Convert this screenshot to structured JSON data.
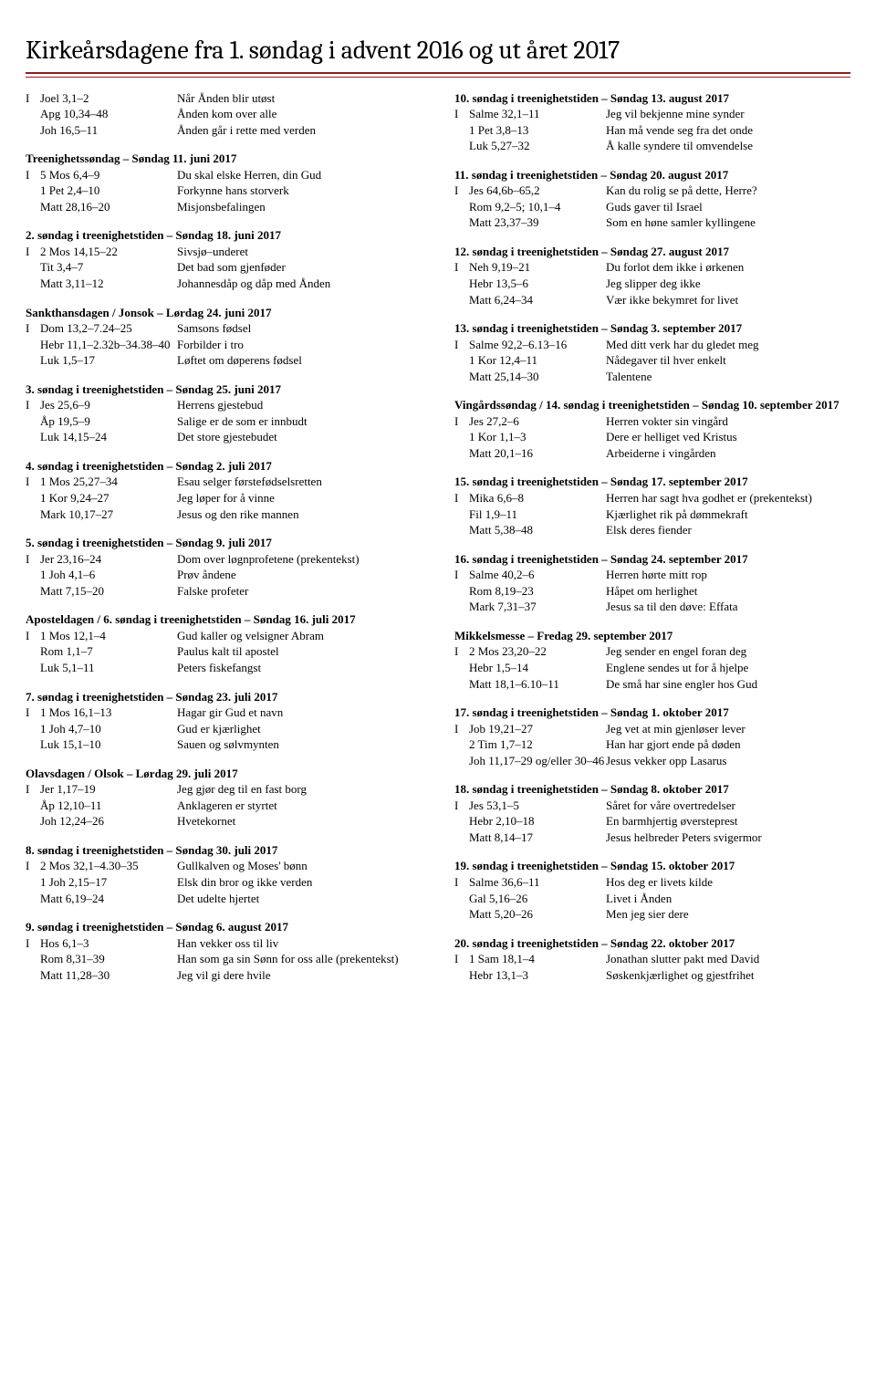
{
  "title": "Kirkeårsdagene fra 1. søndag i advent 2016 og ut året 2017",
  "col1": [
    {
      "rows": [
        [
          "I",
          "Joel 3,1–2",
          "Når Ånden blir utøst"
        ],
        [
          "",
          "Apg 10,34–48",
          "Ånden kom over alle"
        ],
        [
          "",
          "Joh 16,5–11",
          "Ånden går i rette med verden"
        ]
      ]
    },
    {
      "head": "Treenighetssøndag – Søndag 11. juni 2017",
      "rows": [
        [
          "I",
          "5 Mos 6,4–9",
          "Du skal elske Herren, din Gud"
        ],
        [
          "",
          "1 Pet 2,4–10",
          "Forkynne hans storverk"
        ],
        [
          "",
          "Matt 28,16–20",
          "Misjonsbefalingen"
        ]
      ]
    },
    {
      "head": "2. søndag i treenighetstiden – Søndag 18. juni 2017",
      "rows": [
        [
          "I",
          "2 Mos 14,15–22",
          "Sivsjø–underet"
        ],
        [
          "",
          "Tit 3,4–7",
          "Det bad som gjenføder"
        ],
        [
          "",
          "Matt 3,11–12",
          "Johannesdåp og dåp med Ånden"
        ]
      ]
    },
    {
      "head": "Sankthansdagen / Jonsok – Lørdag 24. juni 2017",
      "rows": [
        [
          "I",
          "Dom 13,2–7.24–25",
          "Samsons fødsel"
        ],
        [
          "",
          "Hebr 11,1–2.32b–34.38–40",
          "Forbilder i tro"
        ],
        [
          "",
          "Luk 1,5–17",
          "Løftet om døperens fødsel"
        ]
      ]
    },
    {
      "head": "3. søndag i treenighetstiden – Søndag 25. juni 2017",
      "rows": [
        [
          "I",
          "Jes 25,6–9",
          "Herrens gjestebud"
        ],
        [
          "",
          "Åp 19,5–9",
          "Salige er de som er innbudt"
        ],
        [
          "",
          "Luk 14,15–24",
          "Det store gjestebudet"
        ]
      ]
    },
    {
      "head": "4. søndag i treenighetstiden – Søndag 2. juli 2017",
      "rows": [
        [
          "I",
          "1 Mos 25,27–34",
          "Esau selger førstefødselsretten"
        ],
        [
          "",
          "1 Kor 9,24–27",
          "Jeg løper for å vinne"
        ],
        [
          "",
          "Mark 10,17–27",
          "Jesus og den rike mannen"
        ]
      ]
    },
    {
      "head": "5. søndag i treenighetstiden – Søndag 9. juli 2017",
      "rows": [
        [
          "I",
          "Jer 23,16–24",
          "Dom over løgnprofetene (prekentekst)"
        ],
        [
          "",
          "1 Joh 4,1–6",
          "Prøv åndene"
        ],
        [
          "",
          "Matt 7,15–20",
          "Falske profeter"
        ]
      ]
    },
    {
      "head": "Aposteldagen / 6. søndag i treenighetstiden – Søndag 16. juli 2017",
      "rows": [
        [
          "I",
          "1 Mos 12,1–4",
          "Gud kaller og velsigner Abram"
        ],
        [
          "",
          "Rom 1,1–7",
          "Paulus kalt til apostel"
        ],
        [
          "",
          "Luk 5,1–11",
          "Peters fiskefangst"
        ]
      ]
    },
    {
      "head": "7. søndag i treenighetstiden – Søndag 23. juli 2017",
      "rows": [
        [
          "I",
          "1 Mos 16,1–13",
          "Hagar gir Gud et navn"
        ],
        [
          "",
          "1 Joh 4,7–10",
          "Gud er kjærlighet"
        ],
        [
          "",
          "Luk 15,1–10",
          "Sauen og sølvmynten"
        ]
      ]
    },
    {
      "head": "Olavsdagen / Olsok – Lørdag 29. juli 2017",
      "rows": [
        [
          "I",
          "Jer 1,17–19",
          "Jeg gjør deg til en fast borg"
        ],
        [
          "",
          "Åp 12,10–11",
          "Anklageren er styrtet"
        ],
        [
          "",
          "Joh 12,24–26",
          "Hvetekornet"
        ]
      ]
    },
    {
      "head": "8. søndag i treenighetstiden – Søndag 30. juli 2017",
      "rows": [
        [
          "I",
          "2 Mos 32,1–4.30–35",
          "Gullkalven og Moses' bønn"
        ],
        [
          "",
          "1 Joh 2,15–17",
          "Elsk din bror og ikke verden"
        ],
        [
          "",
          "Matt 6,19–24",
          "Det udelte hjertet"
        ]
      ]
    },
    {
      "head": "9. søndag i treenighetstiden – Søndag 6. august 2017",
      "rows": [
        [
          "I",
          "Hos 6,1–3",
          "Han vekker oss til liv"
        ],
        [
          "",
          "Rom 8,31–39",
          "Han som ga sin Sønn for oss alle (prekentekst)"
        ],
        [
          "",
          "Matt 11,28–30",
          "Jeg vil gi dere hvile"
        ]
      ]
    }
  ],
  "col2": [
    {
      "head": "10. søndag i treenighetstiden – Søndag 13. august 2017",
      "rows": [
        [
          "I",
          "Salme 32,1–11",
          "Jeg vil bekjenne mine synder"
        ],
        [
          "",
          "1 Pet 3,8–13",
          "Han må vende seg fra det onde"
        ],
        [
          "",
          "Luk 5,27–32",
          "Å kalle syndere til omvendelse"
        ]
      ]
    },
    {
      "head": "11. søndag i treenighetstiden – Søndag 20. august 2017",
      "rows": [
        [
          "I",
          "Jes 64,6b–65,2",
          "Kan du rolig se på dette, Herre?"
        ],
        [
          "",
          "Rom 9,2–5; 10,1–4",
          "Guds gaver til Israel"
        ],
        [
          "",
          "Matt 23,37–39",
          "Som en høne samler kyllingene"
        ]
      ]
    },
    {
      "head": "12. søndag i treenighetstiden – Søndag 27. august 2017",
      "rows": [
        [
          "I",
          "Neh 9,19–21",
          "Du forlot dem ikke i ørkenen"
        ],
        [
          "",
          "Hebr 13,5–6",
          "Jeg slipper deg ikke"
        ],
        [
          "",
          "Matt 6,24–34",
          "Vær ikke bekymret for livet"
        ]
      ]
    },
    {
      "head": "13. søndag i treenighetstiden – Søndag 3. september 2017",
      "rows": [
        [
          "I",
          "Salme 92,2–6.13–16",
          "Med ditt verk har du gledet meg"
        ],
        [
          "",
          "1 Kor 12,4–11",
          "Nådegaver til hver enkelt"
        ],
        [
          "",
          "Matt 25,14–30",
          "Talentene"
        ]
      ]
    },
    {
      "head": "Vingårdssøndag / 14. søndag i treenighetstiden – Søndag 10. september 2017",
      "rows": [
        [
          "I",
          "Jes 27,2–6",
          "Herren vokter sin vingård"
        ],
        [
          "",
          "1 Kor 1,1–3",
          "Dere er helliget ved Kristus"
        ],
        [
          "",
          "Matt 20,1–16",
          "Arbeiderne i vingården"
        ]
      ]
    },
    {
      "head": "15. søndag i treenighetstiden – Søndag 17. september 2017",
      "rows": [
        [
          "I",
          "Mika 6,6–8",
          "Herren har sagt hva godhet er (prekentekst)"
        ],
        [
          "",
          "Fil 1,9–11",
          "Kjærlighet rik på dømmekraft"
        ],
        [
          "",
          "Matt 5,38–48",
          "Elsk deres fiender"
        ]
      ]
    },
    {
      "head": "16. søndag i treenighetstiden – Søndag 24. september 2017",
      "rows": [
        [
          "I",
          "Salme 40,2–6",
          "Herren hørte mitt rop"
        ],
        [
          "",
          "Rom 8,19–23",
          "Håpet om herlighet"
        ],
        [
          "",
          "Mark 7,31–37",
          "Jesus sa til den døve: Effata"
        ]
      ]
    },
    {
      "head": "Mikkelsmesse – Fredag 29. september 2017",
      "rows": [
        [
          "I",
          "2 Mos 23,20–22",
          "Jeg sender en engel foran deg"
        ],
        [
          "",
          "Hebr 1,5–14",
          "Englene sendes ut for å hjelpe"
        ],
        [
          "",
          "Matt 18,1–6.10–11",
          "De små har sine engler hos Gud"
        ]
      ]
    },
    {
      "head": "17. søndag i treenighetstiden – Søndag 1. oktober 2017",
      "rows": [
        [
          "I",
          "Job 19,21–27",
          "Jeg vet at min gjenløser lever"
        ],
        [
          "",
          "2 Tim 1,7–12",
          "Han har gjort ende på døden"
        ],
        [
          "",
          "Joh 11,17–29 og/eller 30–46",
          "Jesus vekker opp Lasarus"
        ]
      ]
    },
    {
      "head": "18. søndag i treenighetstiden – Søndag 8. oktober 2017",
      "rows": [
        [
          "I",
          "Jes 53,1–5",
          "Såret for våre overtredelser"
        ],
        [
          "",
          "Hebr 2,10–18",
          "En barmhjertig øversteprest"
        ],
        [
          "",
          "Matt 8,14–17",
          "Jesus helbreder Peters svigermor"
        ]
      ]
    },
    {
      "head": "19. søndag i treenighetstiden – Søndag 15. oktober 2017",
      "rows": [
        [
          "I",
          "Salme 36,6–11",
          "Hos deg er livets kilde"
        ],
        [
          "",
          "Gal 5,16–26",
          "Livet i Ånden"
        ],
        [
          "",
          "Matt 5,20–26",
          "Men jeg sier dere"
        ]
      ]
    },
    {
      "head": "20. søndag i treenighetstiden – Søndag 22. oktober 2017",
      "rows": [
        [
          "I",
          "1 Sam 18,1–4",
          "Jonathan slutter pakt med David"
        ],
        [
          "",
          "Hebr 13,1–3",
          "Søskenkjærlighet og gjestfrihet"
        ]
      ]
    }
  ]
}
